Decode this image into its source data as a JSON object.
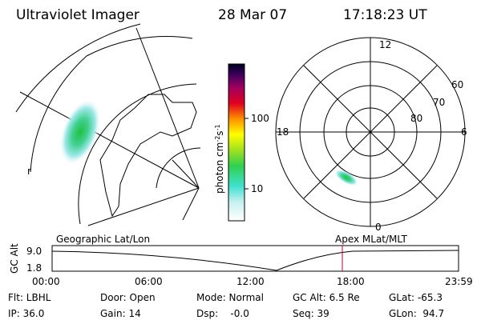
{
  "header": {
    "title": "Ultraviolet Imager",
    "date": "28 Mar 07",
    "time": "17:18:23 UT"
  },
  "colorbar": {
    "label": "photon cm",
    "exp1": "-2",
    "mid": "s",
    "exp2": "-1",
    "ticks": [
      "100",
      "10"
    ]
  },
  "polar": {
    "top": "12",
    "bottom": "0",
    "left": "18",
    "right": "6",
    "rings": [
      "60",
      "70",
      "80"
    ]
  },
  "map": {
    "corner": "r"
  },
  "timeline": {
    "left_title": "Geographic Lat/Lon",
    "right_title": "Apex MLat/MLT",
    "axis_label": "GC Alt",
    "yticks": [
      "9.0",
      "1.8"
    ],
    "xticks": [
      "00:00",
      "06:00",
      "12:00",
      "18:00",
      "23:59"
    ]
  },
  "footer": {
    "rows": [
      [
        "Flt: LBHL",
        "Door: Open",
        "Mode: Normal",
        "GC Alt: 6.5 Re",
        "GLat: -65.3"
      ],
      [
        "IP: 36.0",
        "Gain: 14",
        "Dsp:    -0.0",
        "Seq: 39",
        "GLon:  94.7"
      ]
    ]
  }
}
